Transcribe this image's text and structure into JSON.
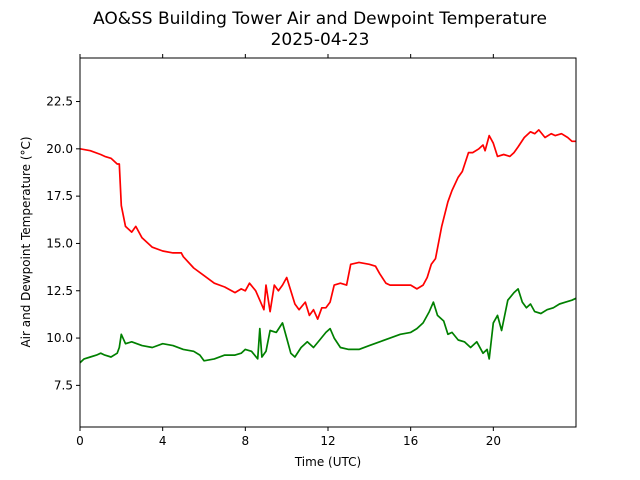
{
  "chart_data": {
    "type": "line",
    "title": "AO&SS Building Tower Air and Dewpoint Temperature",
    "subtitle": "2025-04-23",
    "xlabel": "Time (UTC)",
    "ylabel": "Air and Dewpoint Temperature (°C)",
    "xlim": [
      0,
      24
    ],
    "ylim": [
      5.3,
      24.8
    ],
    "xticks": [
      0,
      4,
      8,
      12,
      16,
      20
    ],
    "xtick_labels": [
      "0",
      "4",
      "8",
      "12",
      "16",
      "20"
    ],
    "yticks": [
      7.5,
      10.0,
      12.5,
      15.0,
      17.5,
      20.0,
      22.5
    ],
    "ytick_labels": [
      "7.5",
      "10.0",
      "12.5",
      "15.0",
      "17.5",
      "20.0",
      "22.5"
    ],
    "grid": false,
    "series": [
      {
        "color": "#ff0000",
        "x": [
          0,
          0.5,
          1.0,
          1.2,
          1.5,
          1.8,
          1.9,
          2.0,
          2.2,
          2.5,
          2.7,
          3.0,
          3.5,
          4.0,
          4.5,
          4.9,
          5.0,
          5.5,
          6.0,
          6.5,
          7.0,
          7.5,
          7.8,
          8.0,
          8.2,
          8.5,
          8.7,
          8.9,
          9.0,
          9.2,
          9.4,
          9.6,
          9.8,
          10.0,
          10.2,
          10.4,
          10.6,
          10.9,
          11.1,
          11.3,
          11.5,
          11.7,
          11.9,
          12.1,
          12.3,
          12.6,
          12.9,
          13.1,
          13.5,
          14.0,
          14.3,
          14.5,
          14.8,
          15.0,
          15.5,
          16.0,
          16.3,
          16.6,
          16.8,
          17.0,
          17.2,
          17.5,
          17.8,
          18.0,
          18.3,
          18.5,
          18.8,
          19.0,
          19.3,
          19.5,
          19.6,
          19.8,
          20.0,
          20.2,
          20.5,
          20.8,
          21.0,
          21.2,
          21.5,
          21.8,
          22.0,
          22.2,
          22.5,
          22.8,
          23.0,
          23.3,
          23.6,
          23.8,
          24.0
        ],
        "y": [
          20.0,
          19.9,
          19.7,
          19.6,
          19.5,
          19.2,
          19.2,
          17.0,
          15.9,
          15.6,
          15.9,
          15.3,
          14.8,
          14.6,
          14.5,
          14.5,
          14.3,
          13.7,
          13.3,
          12.9,
          12.7,
          12.4,
          12.6,
          12.5,
          12.9,
          12.5,
          12.0,
          11.5,
          12.8,
          11.4,
          12.8,
          12.5,
          12.8,
          13.2,
          12.5,
          11.8,
          11.5,
          11.9,
          11.2,
          11.5,
          11.0,
          11.6,
          11.6,
          11.9,
          12.8,
          12.9,
          12.8,
          13.9,
          14.0,
          13.9,
          13.8,
          13.4,
          12.9,
          12.8,
          12.8,
          12.8,
          12.6,
          12.8,
          13.2,
          13.9,
          14.2,
          15.9,
          17.2,
          17.8,
          18.5,
          18.8,
          19.8,
          19.8,
          20.0,
          20.2,
          19.9,
          20.7,
          20.3,
          19.6,
          19.7,
          19.6,
          19.8,
          20.1,
          20.6,
          20.9,
          20.8,
          21.0,
          20.6,
          20.8,
          20.7,
          20.8,
          20.6,
          20.4,
          20.4
        ]
      },
      {
        "color": "#008000",
        "x": [
          0,
          0.2,
          0.5,
          0.8,
          1.0,
          1.2,
          1.5,
          1.8,
          1.9,
          2.0,
          2.2,
          2.5,
          3.0,
          3.5,
          4.0,
          4.5,
          5.0,
          5.5,
          5.8,
          6.0,
          6.5,
          7.0,
          7.5,
          7.8,
          8.0,
          8.3,
          8.6,
          8.7,
          8.8,
          9.0,
          9.2,
          9.5,
          9.8,
          10.0,
          10.2,
          10.4,
          10.7,
          11.0,
          11.3,
          11.6,
          11.9,
          12.1,
          12.3,
          12.6,
          13.0,
          13.5,
          14.0,
          14.5,
          15.0,
          15.5,
          16.0,
          16.3,
          16.6,
          16.9,
          17.1,
          17.3,
          17.6,
          17.8,
          18.0,
          18.3,
          18.6,
          18.9,
          19.2,
          19.5,
          19.7,
          19.8,
          20.0,
          20.2,
          20.4,
          20.7,
          21.0,
          21.2,
          21.4,
          21.6,
          21.8,
          22.0,
          22.3,
          22.6,
          22.9,
          23.2,
          23.5,
          23.8,
          24.0
        ],
        "y": [
          8.7,
          8.9,
          9.0,
          9.1,
          9.2,
          9.1,
          9.0,
          9.2,
          9.5,
          10.2,
          9.7,
          9.8,
          9.6,
          9.5,
          9.7,
          9.6,
          9.4,
          9.3,
          9.1,
          8.8,
          8.9,
          9.1,
          9.1,
          9.2,
          9.4,
          9.3,
          8.9,
          10.5,
          9.0,
          9.3,
          10.4,
          10.3,
          10.8,
          10.0,
          9.2,
          9.0,
          9.5,
          9.8,
          9.5,
          9.9,
          10.3,
          10.5,
          10.0,
          9.5,
          9.4,
          9.4,
          9.6,
          9.8,
          10.0,
          10.2,
          10.3,
          10.5,
          10.8,
          11.4,
          11.9,
          11.2,
          10.9,
          10.2,
          10.3,
          9.9,
          9.8,
          9.5,
          9.8,
          9.2,
          9.4,
          8.9,
          10.8,
          11.2,
          10.4,
          12.0,
          12.4,
          12.6,
          11.9,
          11.6,
          11.8,
          11.4,
          11.3,
          11.5,
          11.6,
          11.8,
          11.9,
          12.0,
          12.1
        ]
      }
    ]
  }
}
